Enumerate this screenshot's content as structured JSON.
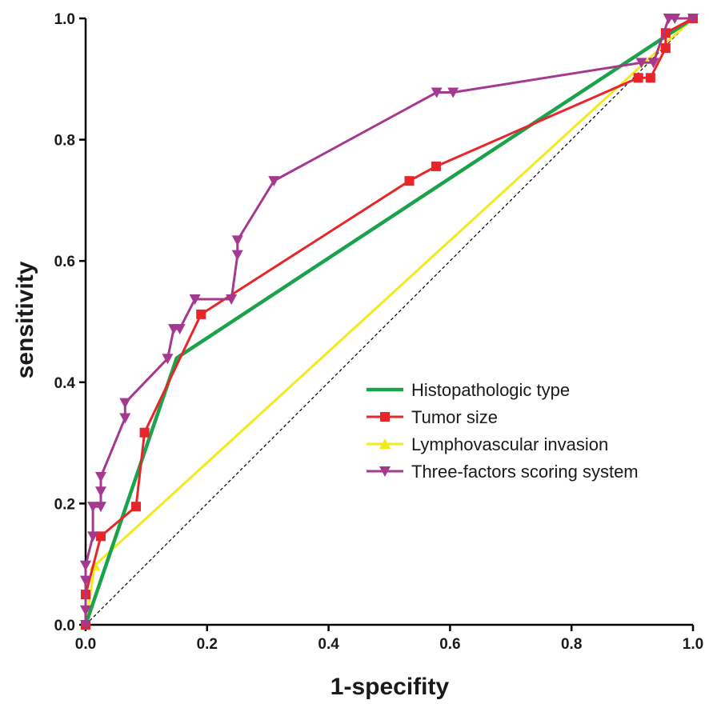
{
  "chart_data": {
    "type": "line",
    "xlabel": "1-specifity",
    "ylabel": "sensitivity",
    "xlim": [
      0,
      1
    ],
    "ylim": [
      0,
      1
    ],
    "x_ticks": [
      "0.0",
      "0.2",
      "0.4",
      "0.6",
      "0.8",
      "1.0"
    ],
    "y_ticks": [
      "0.0",
      "0.2",
      "0.4",
      "0.6",
      "0.8",
      "1.0"
    ],
    "grid": false,
    "legend_position": "bottom-right",
    "reference_line": {
      "style": "dashed",
      "color": "#000000",
      "points": [
        [
          0,
          0
        ],
        [
          1,
          1
        ]
      ]
    },
    "series": [
      {
        "name": "Histopathologic type",
        "color": "#1aa34a",
        "marker": "none",
        "points": [
          [
            0,
            0
          ],
          [
            0.15,
            0.44
          ],
          [
            1,
            1
          ]
        ]
      },
      {
        "name": "Tumor size",
        "color": "#e8262a",
        "marker": "square",
        "points": [
          [
            0,
            0
          ],
          [
            0,
            0.05
          ],
          [
            0.025,
            0.146
          ],
          [
            0.083,
            0.195
          ],
          [
            0.097,
            0.317
          ],
          [
            0.19,
            0.512
          ],
          [
            0.533,
            0.732
          ],
          [
            0.577,
            0.756
          ],
          [
            0.91,
            0.902
          ],
          [
            0.93,
            0.902
          ],
          [
            0.955,
            0.951
          ],
          [
            0.955,
            0.976
          ],
          [
            1,
            1
          ]
        ]
      },
      {
        "name": "Lymphovascular invasion",
        "color": "#f2ea1c",
        "marker": "triangle-up",
        "points": [
          [
            0,
            0
          ],
          [
            0.015,
            0.098
          ],
          [
            1,
            1
          ]
        ]
      },
      {
        "name": "Three-factors scoring system",
        "color": "#a5398f",
        "marker": "triangle-down",
        "points": [
          [
            0,
            0
          ],
          [
            0,
            0.024
          ],
          [
            0,
            0.073
          ],
          [
            0,
            0.098
          ],
          [
            0.012,
            0.146
          ],
          [
            0.012,
            0.195
          ],
          [
            0.025,
            0.195
          ],
          [
            0.025,
            0.22
          ],
          [
            0.025,
            0.244
          ],
          [
            0.065,
            0.341
          ],
          [
            0.065,
            0.366
          ],
          [
            0.135,
            0.439
          ],
          [
            0.145,
            0.488
          ],
          [
            0.155,
            0.488
          ],
          [
            0.18,
            0.537
          ],
          [
            0.24,
            0.537
          ],
          [
            0.25,
            0.61
          ],
          [
            0.25,
            0.634
          ],
          [
            0.31,
            0.732
          ],
          [
            0.578,
            0.878
          ],
          [
            0.605,
            0.878
          ],
          [
            0.915,
            0.927
          ],
          [
            0.935,
            0.927
          ],
          [
            0.96,
            1
          ],
          [
            0.97,
            1
          ],
          [
            1,
            1
          ]
        ]
      }
    ]
  }
}
